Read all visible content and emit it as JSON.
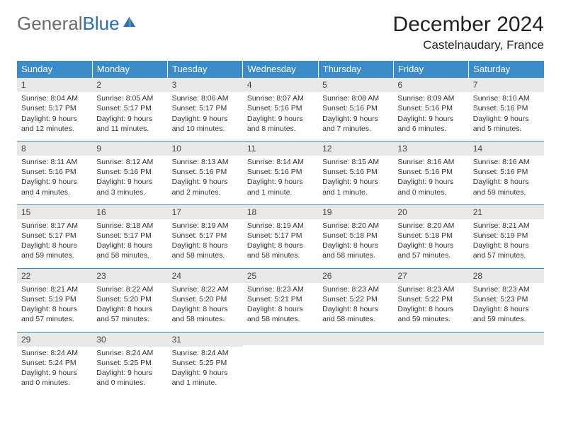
{
  "logo": {
    "part1": "General",
    "part2": "Blue"
  },
  "title": "December 2024",
  "location": "Castelnaudary, France",
  "colors": {
    "header_bg": "#3b8bc9",
    "header_text": "#ffffff",
    "daynum_bg": "#e8e8e8",
    "row_border": "#3b8bc9",
    "logo_gray": "#6b6b6b",
    "logo_blue": "#2a6fb5",
    "text": "#333333",
    "background": "#ffffff"
  },
  "typography": {
    "title_fontsize": 30,
    "location_fontsize": 17,
    "header_fontsize": 13,
    "daynum_fontsize": 12,
    "cell_fontsize": 10.5
  },
  "day_headers": [
    "Sunday",
    "Monday",
    "Tuesday",
    "Wednesday",
    "Thursday",
    "Friday",
    "Saturday"
  ],
  "weeks": [
    [
      {
        "n": "1",
        "sr": "Sunrise: 8:04 AM",
        "ss": "Sunset: 5:17 PM",
        "d1": "Daylight: 9 hours",
        "d2": "and 12 minutes."
      },
      {
        "n": "2",
        "sr": "Sunrise: 8:05 AM",
        "ss": "Sunset: 5:17 PM",
        "d1": "Daylight: 9 hours",
        "d2": "and 11 minutes."
      },
      {
        "n": "3",
        "sr": "Sunrise: 8:06 AM",
        "ss": "Sunset: 5:17 PM",
        "d1": "Daylight: 9 hours",
        "d2": "and 10 minutes."
      },
      {
        "n": "4",
        "sr": "Sunrise: 8:07 AM",
        "ss": "Sunset: 5:16 PM",
        "d1": "Daylight: 9 hours",
        "d2": "and 8 minutes."
      },
      {
        "n": "5",
        "sr": "Sunrise: 8:08 AM",
        "ss": "Sunset: 5:16 PM",
        "d1": "Daylight: 9 hours",
        "d2": "and 7 minutes."
      },
      {
        "n": "6",
        "sr": "Sunrise: 8:09 AM",
        "ss": "Sunset: 5:16 PM",
        "d1": "Daylight: 9 hours",
        "d2": "and 6 minutes."
      },
      {
        "n": "7",
        "sr": "Sunrise: 8:10 AM",
        "ss": "Sunset: 5:16 PM",
        "d1": "Daylight: 9 hours",
        "d2": "and 5 minutes."
      }
    ],
    [
      {
        "n": "8",
        "sr": "Sunrise: 8:11 AM",
        "ss": "Sunset: 5:16 PM",
        "d1": "Daylight: 9 hours",
        "d2": "and 4 minutes."
      },
      {
        "n": "9",
        "sr": "Sunrise: 8:12 AM",
        "ss": "Sunset: 5:16 PM",
        "d1": "Daylight: 9 hours",
        "d2": "and 3 minutes."
      },
      {
        "n": "10",
        "sr": "Sunrise: 8:13 AM",
        "ss": "Sunset: 5:16 PM",
        "d1": "Daylight: 9 hours",
        "d2": "and 2 minutes."
      },
      {
        "n": "11",
        "sr": "Sunrise: 8:14 AM",
        "ss": "Sunset: 5:16 PM",
        "d1": "Daylight: 9 hours",
        "d2": "and 1 minute."
      },
      {
        "n": "12",
        "sr": "Sunrise: 8:15 AM",
        "ss": "Sunset: 5:16 PM",
        "d1": "Daylight: 9 hours",
        "d2": "and 1 minute."
      },
      {
        "n": "13",
        "sr": "Sunrise: 8:16 AM",
        "ss": "Sunset: 5:16 PM",
        "d1": "Daylight: 9 hours",
        "d2": "and 0 minutes."
      },
      {
        "n": "14",
        "sr": "Sunrise: 8:16 AM",
        "ss": "Sunset: 5:16 PM",
        "d1": "Daylight: 8 hours",
        "d2": "and 59 minutes."
      }
    ],
    [
      {
        "n": "15",
        "sr": "Sunrise: 8:17 AM",
        "ss": "Sunset: 5:17 PM",
        "d1": "Daylight: 8 hours",
        "d2": "and 59 minutes."
      },
      {
        "n": "16",
        "sr": "Sunrise: 8:18 AM",
        "ss": "Sunset: 5:17 PM",
        "d1": "Daylight: 8 hours",
        "d2": "and 58 minutes."
      },
      {
        "n": "17",
        "sr": "Sunrise: 8:19 AM",
        "ss": "Sunset: 5:17 PM",
        "d1": "Daylight: 8 hours",
        "d2": "and 58 minutes."
      },
      {
        "n": "18",
        "sr": "Sunrise: 8:19 AM",
        "ss": "Sunset: 5:17 PM",
        "d1": "Daylight: 8 hours",
        "d2": "and 58 minutes."
      },
      {
        "n": "19",
        "sr": "Sunrise: 8:20 AM",
        "ss": "Sunset: 5:18 PM",
        "d1": "Daylight: 8 hours",
        "d2": "and 58 minutes."
      },
      {
        "n": "20",
        "sr": "Sunrise: 8:20 AM",
        "ss": "Sunset: 5:18 PM",
        "d1": "Daylight: 8 hours",
        "d2": "and 57 minutes."
      },
      {
        "n": "21",
        "sr": "Sunrise: 8:21 AM",
        "ss": "Sunset: 5:19 PM",
        "d1": "Daylight: 8 hours",
        "d2": "and 57 minutes."
      }
    ],
    [
      {
        "n": "22",
        "sr": "Sunrise: 8:21 AM",
        "ss": "Sunset: 5:19 PM",
        "d1": "Daylight: 8 hours",
        "d2": "and 57 minutes."
      },
      {
        "n": "23",
        "sr": "Sunrise: 8:22 AM",
        "ss": "Sunset: 5:20 PM",
        "d1": "Daylight: 8 hours",
        "d2": "and 57 minutes."
      },
      {
        "n": "24",
        "sr": "Sunrise: 8:22 AM",
        "ss": "Sunset: 5:20 PM",
        "d1": "Daylight: 8 hours",
        "d2": "and 58 minutes."
      },
      {
        "n": "25",
        "sr": "Sunrise: 8:23 AM",
        "ss": "Sunset: 5:21 PM",
        "d1": "Daylight: 8 hours",
        "d2": "and 58 minutes."
      },
      {
        "n": "26",
        "sr": "Sunrise: 8:23 AM",
        "ss": "Sunset: 5:22 PM",
        "d1": "Daylight: 8 hours",
        "d2": "and 58 minutes."
      },
      {
        "n": "27",
        "sr": "Sunrise: 8:23 AM",
        "ss": "Sunset: 5:22 PM",
        "d1": "Daylight: 8 hours",
        "d2": "and 59 minutes."
      },
      {
        "n": "28",
        "sr": "Sunrise: 8:23 AM",
        "ss": "Sunset: 5:23 PM",
        "d1": "Daylight: 8 hours",
        "d2": "and 59 minutes."
      }
    ],
    [
      {
        "n": "29",
        "sr": "Sunrise: 8:24 AM",
        "ss": "Sunset: 5:24 PM",
        "d1": "Daylight: 9 hours",
        "d2": "and 0 minutes."
      },
      {
        "n": "30",
        "sr": "Sunrise: 8:24 AM",
        "ss": "Sunset: 5:25 PM",
        "d1": "Daylight: 9 hours",
        "d2": "and 0 minutes."
      },
      {
        "n": "31",
        "sr": "Sunrise: 8:24 AM",
        "ss": "Sunset: 5:25 PM",
        "d1": "Daylight: 9 hours",
        "d2": "and 1 minute."
      },
      {
        "empty": true
      },
      {
        "empty": true
      },
      {
        "empty": true
      },
      {
        "empty": true
      }
    ]
  ]
}
